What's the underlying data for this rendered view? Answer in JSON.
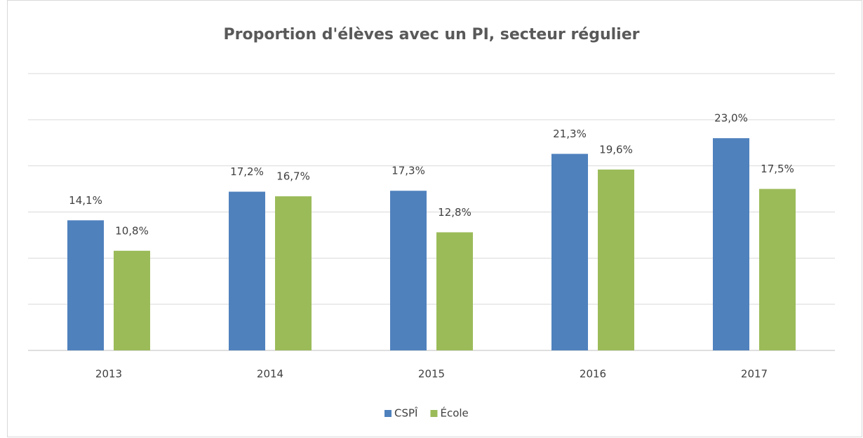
{
  "chart_data": {
    "type": "bar",
    "title": "Proportion d'élèves avec un PI, secteur régulier",
    "categories": [
      "2013",
      "2014",
      "2015",
      "2016",
      "2017"
    ],
    "series": [
      {
        "name": "CSPÎ",
        "color": "#4f81bd",
        "values": [
          14.1,
          17.2,
          17.3,
          21.3,
          23.0
        ],
        "value_labels": [
          "14,1%",
          "17,2%",
          "17,3%",
          "21,3%",
          "23,0%"
        ]
      },
      {
        "name": "École",
        "color": "#9bbb59",
        "values": [
          10.8,
          16.7,
          12.8,
          19.6,
          17.5
        ],
        "value_labels": [
          "10,8%",
          "16,7%",
          "12,8%",
          "19,6%",
          "17,5%"
        ]
      }
    ],
    "ylim": [
      0,
      30
    ],
    "yticks": [
      0,
      5,
      10,
      15,
      20,
      25,
      30
    ],
    "tick_labels": false,
    "grid": true,
    "legend": "bottom"
  }
}
